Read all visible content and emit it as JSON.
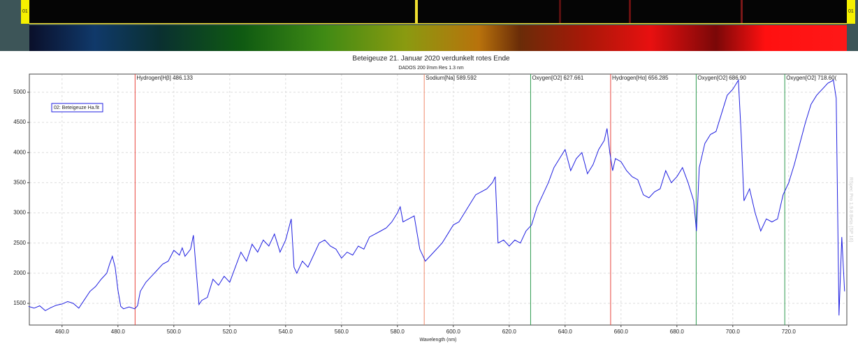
{
  "top_strip": {
    "left_marker": "01",
    "right_marker": "01"
  },
  "watermark": "RSpec Pro 1.9.8 Beta (SP 16)",
  "chart_data": {
    "type": "line",
    "title": "Beteigeuze  21. Januar 2020 verdunkelt  rotes Ende",
    "subtitle": "DADOS  200 l/mm  Res 1.3 nm",
    "x_label": "Wavelength (nm)",
    "xlim": [
      448.3,
      740.8
    ],
    "ylim": [
      1141,
      5301
    ],
    "xticks": [
      {
        "value": 460,
        "label": "460.0"
      },
      {
        "value": 480,
        "label": "480.0"
      },
      {
        "value": 500,
        "label": "500.0"
      },
      {
        "value": 520,
        "label": "520.0"
      },
      {
        "value": 540,
        "label": "540.0"
      },
      {
        "value": 560,
        "label": "560.0"
      },
      {
        "value": 580,
        "label": "580.0"
      },
      {
        "value": 600,
        "label": "600.0"
      },
      {
        "value": 620,
        "label": "620.0"
      },
      {
        "value": 640,
        "label": "640.0"
      },
      {
        "value": 660,
        "label": "660.0"
      },
      {
        "value": 680,
        "label": "680.0"
      },
      {
        "value": 700,
        "label": "700.0"
      },
      {
        "value": 720,
        "label": "720.0"
      }
    ],
    "yticks": [
      1500,
      2000,
      2500,
      3000,
      3500,
      4000,
      4500,
      5000
    ],
    "grid": true,
    "annotations": [
      {
        "label": "Hydrogen[Hβ] 486.133",
        "x": 486.133,
        "color": "#e8453c"
      },
      {
        "label": "Sodium[Na] 589.592",
        "x": 589.592,
        "color": "#f08a6a"
      },
      {
        "label": "Oxygen[O2] 627.661",
        "x": 627.661,
        "color": "#2e9a4e"
      },
      {
        "label": "Hydrogen[Hα] 656.285",
        "x": 656.285,
        "color": "#e8453c"
      },
      {
        "label": "Oxygen[O2] 686.90",
        "x": 686.9,
        "color": "#2e9a4e"
      },
      {
        "label": "Oxygen[O2] 718.60(",
        "x": 718.6,
        "color": "#2e9a4e"
      }
    ],
    "x": [
      448,
      450,
      452,
      454,
      456,
      458,
      460,
      462,
      464,
      466,
      468,
      470,
      472,
      474,
      476,
      477,
      478,
      479,
      480,
      481,
      482,
      484,
      486,
      487,
      488,
      490,
      492,
      494,
      496,
      498,
      500,
      502,
      503,
      504,
      506,
      507,
      508,
      509,
      510,
      512,
      514,
      516,
      518,
      520,
      522,
      524,
      526,
      528,
      530,
      532,
      534,
      536,
      538,
      540,
      542,
      543,
      544,
      546,
      548,
      550,
      552,
      554,
      556,
      558,
      560,
      562,
      564,
      566,
      568,
      570,
      572,
      574,
      576,
      578,
      580,
      581,
      582,
      584,
      586,
      588,
      590,
      592,
      594,
      596,
      598,
      600,
      602,
      604,
      606,
      608,
      610,
      612,
      614,
      615,
      616,
      618,
      620,
      622,
      624,
      626,
      628,
      630,
      632,
      634,
      636,
      638,
      640,
      642,
      644,
      646,
      648,
      650,
      652,
      654,
      655,
      656,
      657,
      658,
      660,
      662,
      664,
      666,
      668,
      670,
      672,
      674,
      676,
      678,
      680,
      682,
      684,
      686,
      687,
      688,
      690,
      692,
      694,
      696,
      698,
      700,
      702,
      703,
      704,
      706,
      708,
      710,
      712,
      714,
      716,
      718,
      720,
      722,
      724,
      726,
      728,
      730,
      732,
      734,
      736,
      737,
      738,
      739,
      740
    ],
    "series": [
      {
        "name": "02: Beteigeuze Ha.fit",
        "color": "#1f1fe0",
        "values": [
          1450,
          1420,
          1460,
          1380,
          1430,
          1470,
          1490,
          1530,
          1500,
          1420,
          1560,
          1700,
          1780,
          1900,
          2000,
          2150,
          2280,
          2100,
          1720,
          1450,
          1410,
          1440,
          1410,
          1460,
          1700,
          1850,
          1950,
          2050,
          2150,
          2200,
          2380,
          2300,
          2420,
          2280,
          2400,
          2630,
          2050,
          1480,
          1550,
          1600,
          1900,
          1800,
          1950,
          1850,
          2100,
          2350,
          2200,
          2480,
          2350,
          2550,
          2450,
          2650,
          2350,
          2550,
          2900,
          2100,
          2000,
          2200,
          2100,
          2300,
          2500,
          2550,
          2450,
          2400,
          2250,
          2350,
          2300,
          2450,
          2400,
          2600,
          2650,
          2700,
          2750,
          2850,
          3000,
          3100,
          2850,
          2900,
          2950,
          2400,
          2200,
          2300,
          2400,
          2500,
          2650,
          2800,
          2850,
          3000,
          3150,
          3300,
          3350,
          3400,
          3500,
          3600,
          2500,
          2550,
          2450,
          2550,
          2500,
          2700,
          2800,
          3100,
          3300,
          3500,
          3750,
          3900,
          4050,
          3700,
          3900,
          4000,
          3650,
          3800,
          4050,
          4200,
          4400,
          4000,
          3700,
          3900,
          3850,
          3700,
          3600,
          3550,
          3300,
          3250,
          3350,
          3400,
          3700,
          3500,
          3600,
          3750,
          3500,
          3200,
          2700,
          3750,
          4150,
          4300,
          4350,
          4650,
          4950,
          5050,
          5200,
          4300,
          3200,
          3400,
          3000,
          2700,
          2900,
          2850,
          2900,
          3300,
          3500,
          3800,
          4150,
          4500,
          4800,
          4950,
          5050,
          5150,
          5200,
          4900,
          1300,
          2600,
          1700
        ]
      }
    ]
  }
}
